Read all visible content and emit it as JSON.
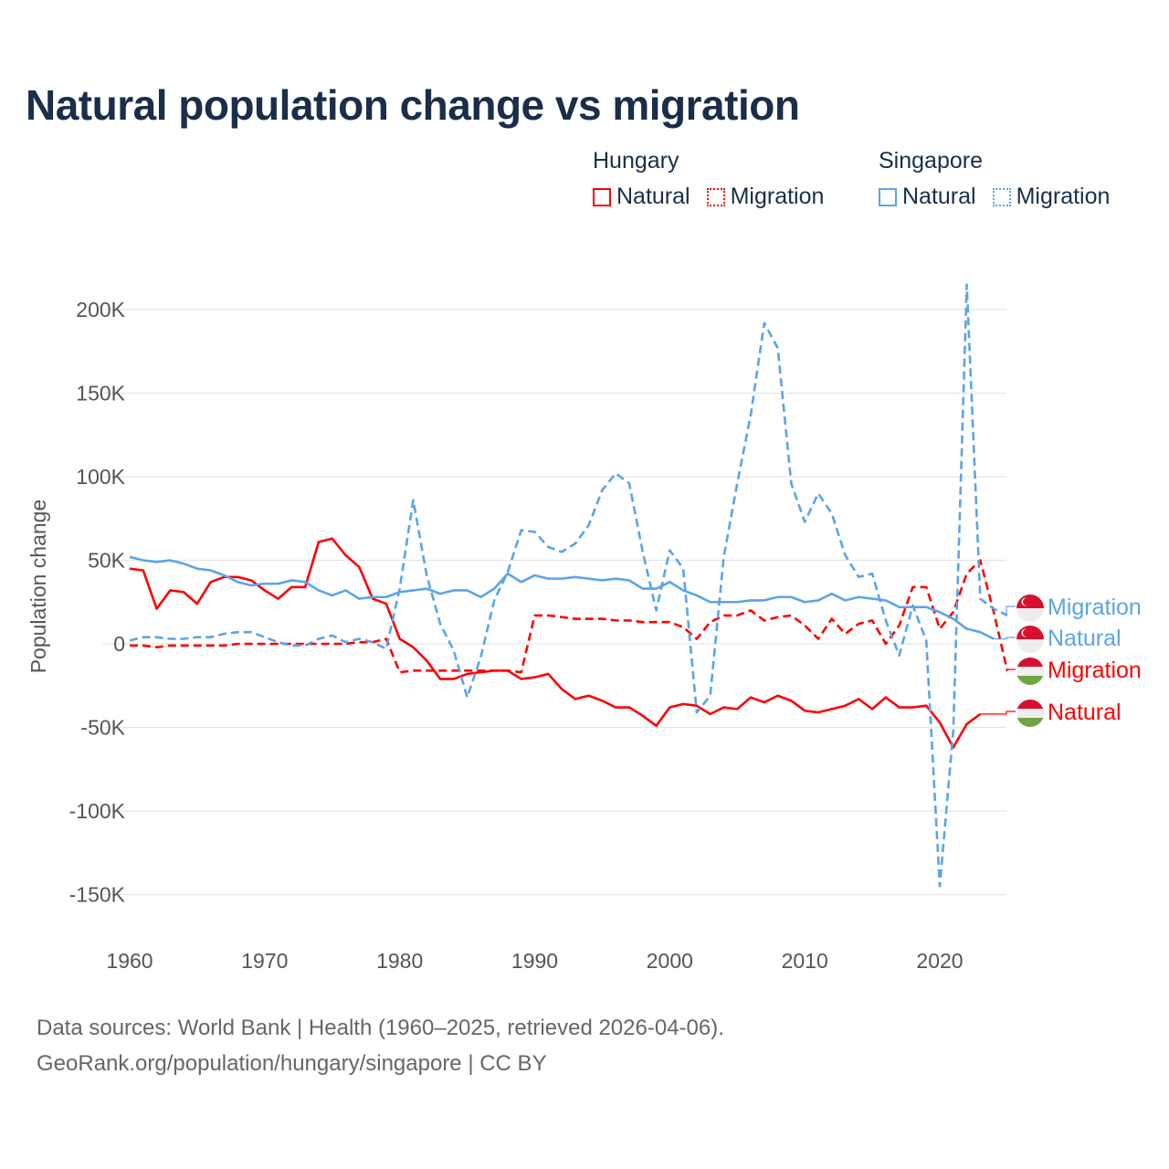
{
  "chart_data": {
    "type": "line",
    "title": "Natural population change vs migration",
    "xlabel": "",
    "ylabel": "Population change",
    "xlim": [
      1960,
      2025
    ],
    "ylim": [
      -170000,
      215000
    ],
    "x_ticks": [
      1960,
      1970,
      1980,
      1990,
      2000,
      2010,
      2020
    ],
    "x_tick_labels": [
      "1960",
      "1970",
      "1980",
      "1990",
      "2000",
      "2010",
      "2020"
    ],
    "y_ticks": [
      200000,
      150000,
      100000,
      50000,
      0,
      -50000,
      -100000,
      -150000
    ],
    "y_tick_labels": [
      "200K",
      "150K",
      "100K",
      "50K",
      "0",
      "-50K",
      "-100K",
      "-150K"
    ],
    "grid": true,
    "legend_placement": "top-right",
    "legend_groups": [
      {
        "title": "Hungary",
        "items": [
          "Natural",
          "Migration"
        ]
      },
      {
        "title": "Singapore",
        "items": [
          "Natural",
          "Migration"
        ]
      }
    ],
    "start_year": 1960,
    "series": [
      {
        "name": "Hungary Natural",
        "country": "Hungary",
        "kind": "Natural",
        "color": "#ff0000",
        "dashed": false,
        "end_label": "Natural",
        "flag": "hungary",
        "values": [
          45,
          44,
          21,
          32,
          31,
          24,
          37,
          40,
          40,
          38,
          32,
          27,
          34,
          34,
          61,
          63,
          53,
          46,
          27,
          24,
          3,
          -2,
          -10,
          -21,
          -21,
          -18,
          -17,
          -16,
          -16,
          -21,
          -20,
          -18,
          -27,
          -33,
          -31,
          -34,
          -38,
          -38,
          -43,
          -49,
          -38,
          -36,
          -37,
          -42,
          -38,
          -39,
          -32,
          -35,
          -31,
          -34,
          -40,
          -41,
          -39,
          -37,
          -33,
          -39,
          -32,
          -38,
          -38,
          -37,
          -47,
          -62,
          -48,
          -42
        ]
      },
      {
        "name": "Hungary Migration",
        "country": "Hungary",
        "kind": "Migration",
        "color": "#ff0000",
        "dashed": true,
        "end_label": "Migration",
        "flag": "hungary",
        "values": [
          -1,
          -1,
          -2,
          -1,
          -1,
          -1,
          -1,
          -1,
          0,
          0,
          0,
          0,
          0,
          0,
          0,
          0,
          0,
          1,
          1,
          3,
          -17,
          -16,
          -16,
          -16,
          -16,
          -16,
          -16,
          -16,
          -16,
          -17,
          17,
          17,
          16,
          15,
          15,
          15,
          14,
          14,
          13,
          13,
          13,
          10,
          3,
          13,
          17,
          17,
          20,
          14,
          16,
          17,
          11,
          3,
          15,
          6,
          12,
          14,
          0,
          11,
          34,
          34,
          9,
          19,
          42,
          50,
          19,
          -16
        ]
      },
      {
        "name": "Singapore Natural",
        "country": "Singapore",
        "kind": "Natural",
        "color": "#5ba4e8",
        "dashed": false,
        "end_label": "Natural",
        "flag": "singapore",
        "values": [
          52,
          50,
          49,
          50,
          48,
          45,
          44,
          41,
          37,
          35,
          36,
          36,
          38,
          37,
          32,
          29,
          32,
          27,
          28,
          28,
          31,
          32,
          33,
          30,
          32,
          32,
          28,
          33,
          42,
          37,
          41,
          39,
          39,
          40,
          39,
          38,
          39,
          38,
          33,
          33,
          37,
          32,
          29,
          25,
          25,
          25,
          26,
          26,
          28,
          28,
          25,
          26,
          30,
          26,
          28,
          27,
          26,
          22,
          22,
          22,
          19,
          15,
          9,
          7,
          3
        ]
      },
      {
        "name": "Singapore Migration",
        "country": "Singapore",
        "kind": "Migration",
        "color": "#5ba4e8",
        "dashed": true,
        "end_label": "Migration",
        "flag": "singapore",
        "values": [
          2,
          4,
          4,
          3,
          3,
          4,
          4,
          6,
          7,
          7,
          4,
          1,
          -1,
          -1,
          3,
          5,
          1,
          3,
          1,
          -3,
          33,
          86,
          41,
          12,
          -4,
          -32,
          -8,
          26,
          43,
          68,
          67,
          58,
          55,
          60,
          71,
          92,
          102,
          96,
          55,
          20,
          56,
          45,
          -41,
          -31,
          52,
          96,
          137,
          192,
          177,
          96,
          73,
          90,
          78,
          53,
          40,
          42,
          14,
          -7,
          23,
          2,
          -145,
          -52,
          215,
          27,
          21,
          17
        ]
      }
    ],
    "value_unit": "thousands"
  },
  "footer": {
    "line1": "Data sources: World Bank | Health (1960–2025, retrieved 2026-04-06).",
    "line2": "GeoRank.org/population/hungary/singapore | CC BY"
  }
}
